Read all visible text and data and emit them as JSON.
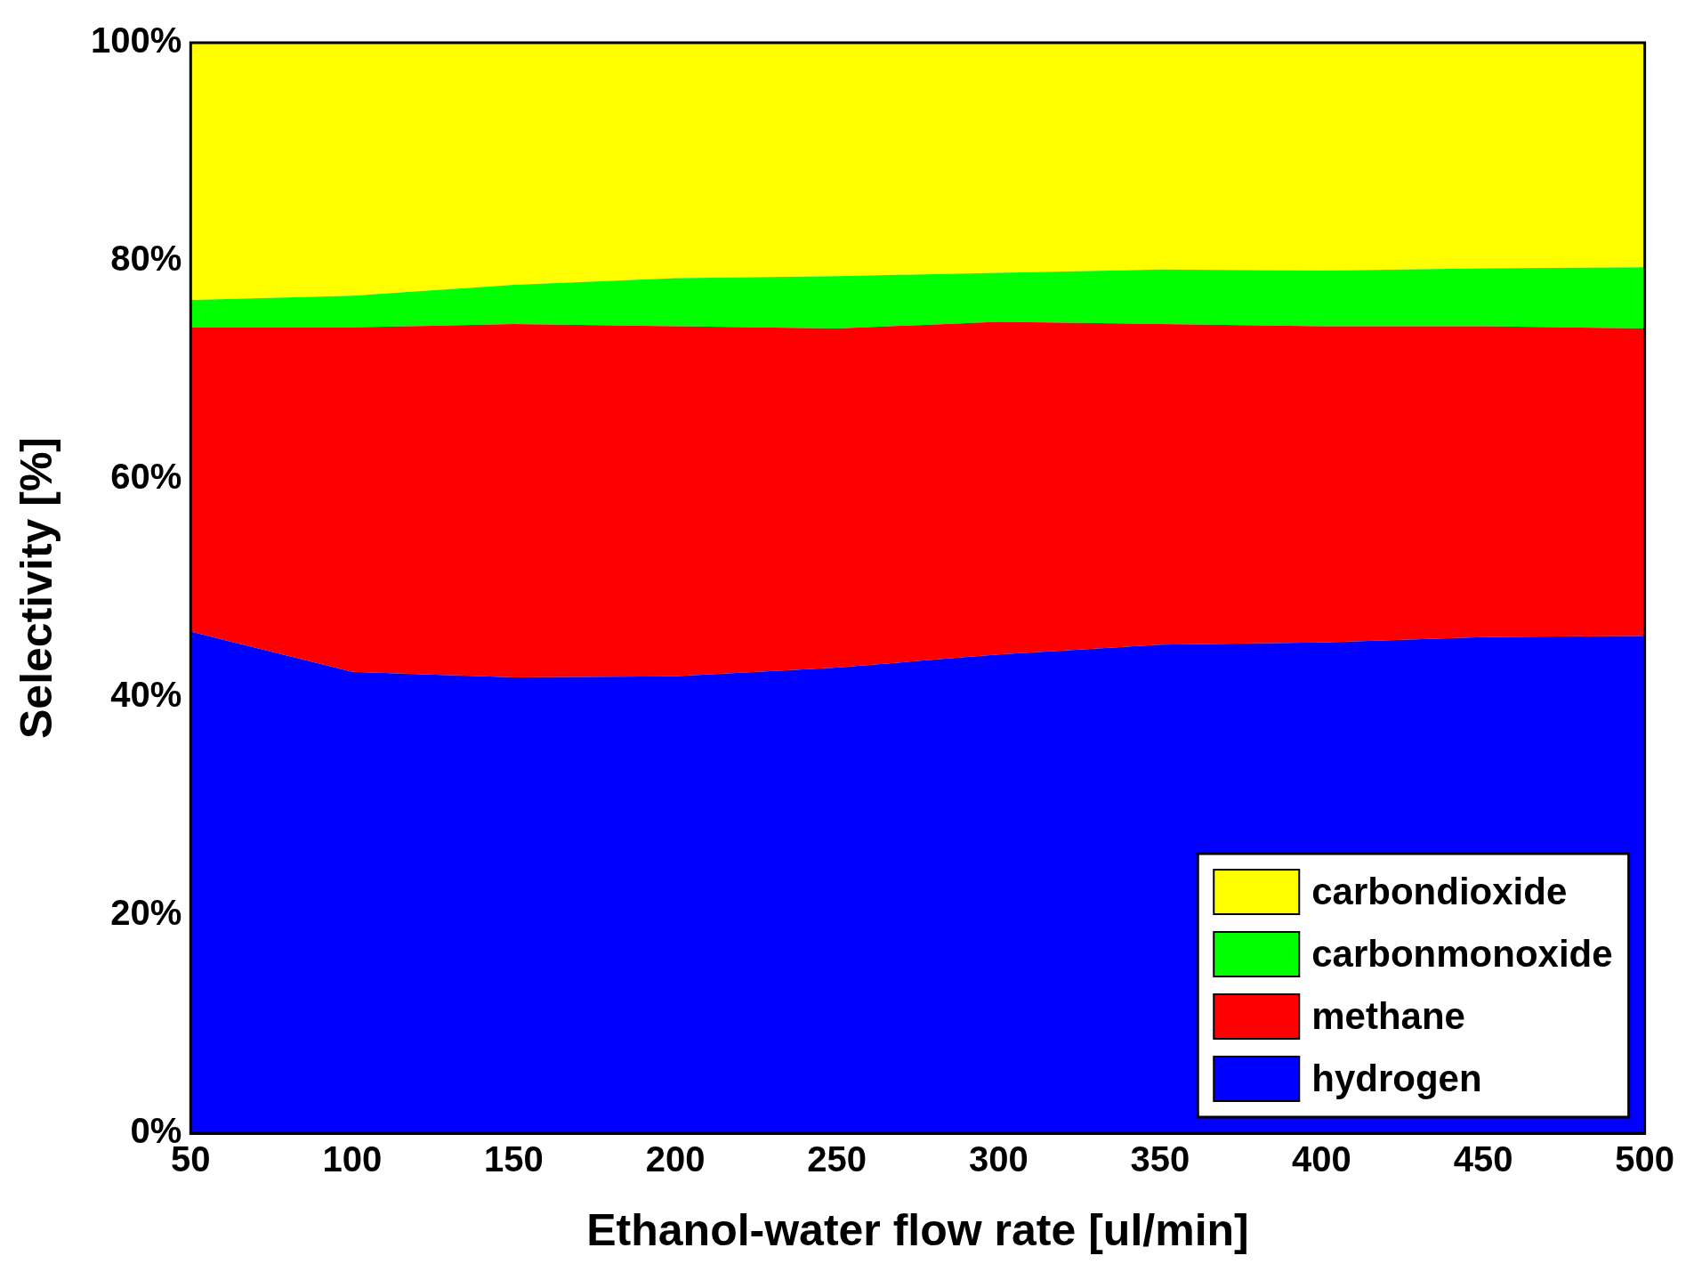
{
  "chart_data": {
    "type": "area",
    "stacked": true,
    "xlabel": "Ethanol-water flow rate [ul/min]",
    "ylabel": "Selectivity [%]",
    "x": [
      50,
      100,
      150,
      200,
      250,
      300,
      350,
      400,
      450,
      500
    ],
    "xlim": [
      50,
      500
    ],
    "xticks": [
      50,
      100,
      150,
      200,
      250,
      300,
      350,
      400,
      450,
      500
    ],
    "ylim": [
      0,
      100
    ],
    "yticks": [
      {
        "value": 0,
        "label": "0%"
      },
      {
        "value": 20,
        "label": "20%"
      },
      {
        "value": 40,
        "label": "40%"
      },
      {
        "value": 60,
        "label": "60%"
      },
      {
        "value": 80,
        "label": "80%"
      },
      {
        "value": 100,
        "label": "100%"
      }
    ],
    "grid": false,
    "legend": "bottom right",
    "series": [
      {
        "name": "hydrogen",
        "color": "#0000ff",
        "values": [
          46.0,
          42.3,
          41.8,
          41.9,
          42.7,
          43.9,
          44.8,
          45.0,
          45.5,
          45.6
        ]
      },
      {
        "name": "methane",
        "color": "#ff0000",
        "values": [
          27.9,
          31.6,
          32.4,
          32.1,
          31.1,
          30.5,
          29.4,
          29.0,
          28.5,
          28.2
        ]
      },
      {
        "name": "carbonmonoxide",
        "color": "#00ff00",
        "values": [
          2.5,
          2.9,
          3.6,
          4.4,
          4.8,
          4.5,
          5.0,
          5.1,
          5.3,
          5.6
        ]
      },
      {
        "name": "carbondioxide",
        "color": "#ffff00",
        "values": [
          23.6,
          23.2,
          22.2,
          21.6,
          21.4,
          21.1,
          20.8,
          20.9,
          20.7,
          20.6
        ]
      }
    ]
  }
}
